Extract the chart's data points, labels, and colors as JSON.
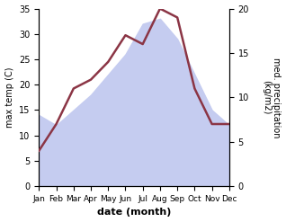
{
  "months": [
    "Jan",
    "Feb",
    "Mar",
    "Apr",
    "May",
    "Jun",
    "Jul",
    "Aug",
    "Sep",
    "Oct",
    "Nov",
    "Dec"
  ],
  "max_temp": [
    14,
    12,
    15,
    18,
    22,
    26,
    32,
    33,
    29,
    22,
    15,
    12
  ],
  "precip": [
    4,
    7,
    11,
    12,
    14,
    17,
    16,
    20,
    19,
    11,
    7,
    7
  ],
  "precip_color": "#8b3545",
  "temp_fill_color": "#c5ccf0",
  "left_ylabel": "max temp (C)",
  "right_ylabel": "med. precipitation\n(kg/m2)",
  "xlabel": "date (month)",
  "ylim_left": [
    0,
    35
  ],
  "ylim_right": [
    0,
    20
  ],
  "yticks_left": [
    0,
    5,
    10,
    15,
    20,
    25,
    30,
    35
  ],
  "yticks_right": [
    0,
    5,
    10,
    15,
    20
  ],
  "background_color": "#ffffff"
}
